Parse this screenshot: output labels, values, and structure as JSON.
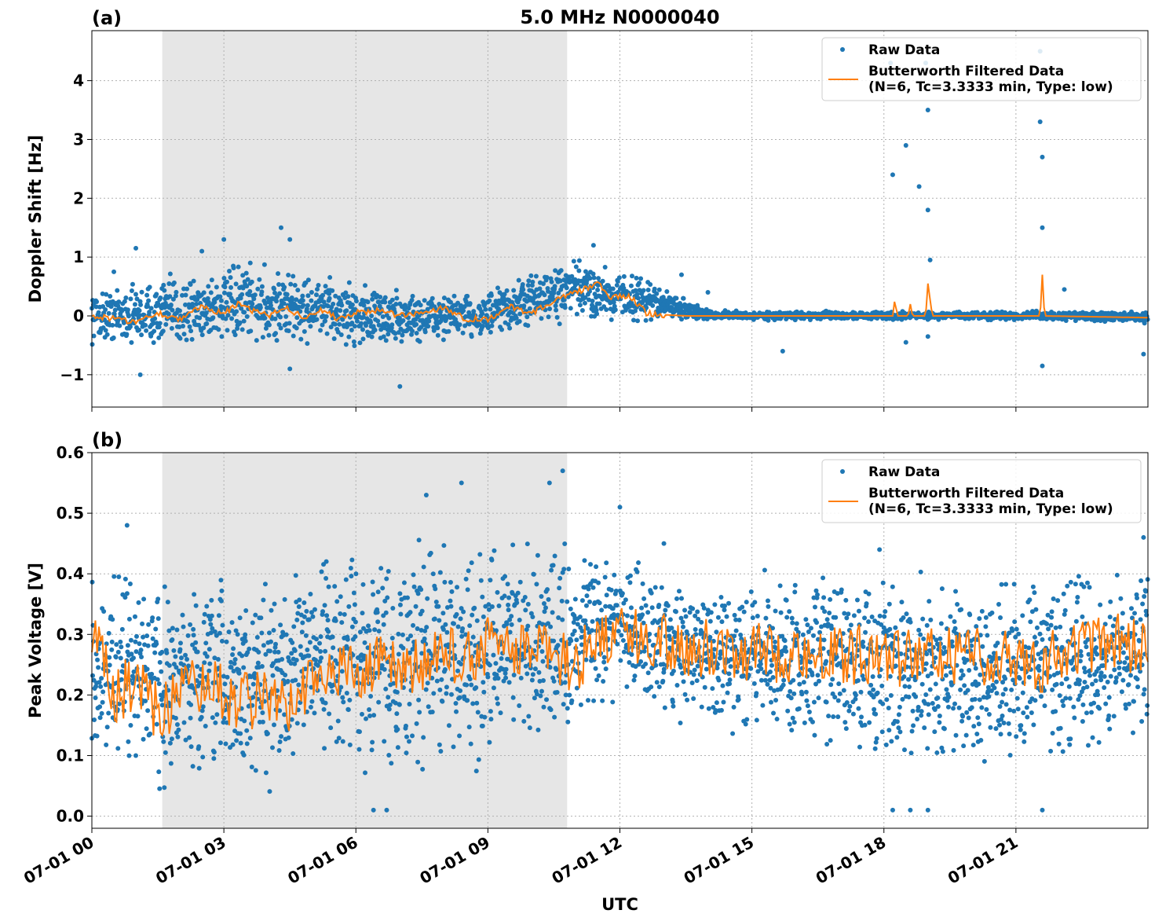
{
  "title": "5.0 MHz N0000040",
  "xlabel": "UTC",
  "colors": {
    "raw": "#1f77b4",
    "filtered": "#ff7f0e",
    "shade": "#e6e6e6"
  },
  "legend": {
    "raw_label": "Raw Data",
    "filtered_line1": "Butterworth Filtered Data",
    "filtered_line2": "(N=6, Tc=3.3333 min, Type: low)"
  },
  "chart_data": [
    {
      "panel": "(a)",
      "type": "scatter",
      "title": "5.0 MHz N0000040",
      "xlabel": "",
      "ylabel": "Doppler Shift [Hz]",
      "x_unit": "hours UTC (07-01)",
      "xlim": [
        0,
        24
      ],
      "ylim": [
        -1.55,
        4.85
      ],
      "yticks": [
        -1,
        0,
        1,
        2,
        3,
        4
      ],
      "ytick_labels": [
        "−1",
        "0",
        "1",
        "2",
        "3",
        "4"
      ],
      "xticks": [
        0,
        3,
        6,
        9,
        12,
        15,
        18,
        21
      ],
      "shaded_region": [
        1.6,
        10.8
      ],
      "grid": true,
      "legend_position": "top-right",
      "series": [
        {
          "name": "Raw Data",
          "style": "points",
          "envelope": [
            [
              0,
              -0.45,
              0.45
            ],
            [
              1,
              -0.55,
              0.6
            ],
            [
              2,
              -0.6,
              0.75
            ],
            [
              3,
              -0.5,
              0.85
            ],
            [
              4,
              -0.55,
              0.9
            ],
            [
              5,
              -0.5,
              0.75
            ],
            [
              6,
              -0.55,
              0.6
            ],
            [
              7,
              -0.6,
              0.5
            ],
            [
              8,
              -0.45,
              0.45
            ],
            [
              9,
              -0.45,
              0.45
            ],
            [
              10,
              -0.2,
              0.75
            ],
            [
              11,
              -0.1,
              1.0
            ],
            [
              12,
              -0.15,
              0.85
            ],
            [
              13,
              -0.1,
              0.5
            ],
            [
              14,
              -0.07,
              0.1
            ],
            [
              15,
              -0.07,
              0.08
            ],
            [
              18,
              -0.07,
              0.08
            ],
            [
              21,
              -0.07,
              0.08
            ],
            [
              24,
              -0.12,
              0.08
            ]
          ],
          "outliers": [
            [
              0.5,
              0.75
            ],
            [
              1.0,
              1.15
            ],
            [
              1.1,
              -1.0
            ],
            [
              2.5,
              1.1
            ],
            [
              3.0,
              1.3
            ],
            [
              3.6,
              0.9
            ],
            [
              4.3,
              1.5
            ],
            [
              4.5,
              1.3
            ],
            [
              4.5,
              -0.9
            ],
            [
              7.0,
              -1.2
            ],
            [
              11.4,
              1.2
            ],
            [
              13.4,
              0.7
            ],
            [
              14.0,
              0.4
            ],
            [
              15.7,
              -0.6
            ],
            [
              18.15,
              4.3
            ],
            [
              18.2,
              2.4
            ],
            [
              18.5,
              2.9
            ],
            [
              18.5,
              -0.45
            ],
            [
              18.8,
              2.2
            ],
            [
              18.95,
              4.3
            ],
            [
              19.0,
              3.5
            ],
            [
              19.0,
              1.8
            ],
            [
              19.05,
              0.95
            ],
            [
              19.0,
              -0.35
            ],
            [
              21.55,
              4.5
            ],
            [
              21.55,
              3.3
            ],
            [
              21.6,
              2.7
            ],
            [
              21.6,
              1.5
            ],
            [
              21.6,
              -0.85
            ],
            [
              22.1,
              0.45
            ],
            [
              23.9,
              -0.65
            ]
          ]
        },
        {
          "name": "Butterworth Filtered Data\n(N=6, Tc=3.3333 min, Type: low)",
          "style": "line",
          "points": [
            [
              0,
              0.0
            ],
            [
              0.5,
              -0.05
            ],
            [
              1.0,
              -0.1
            ],
            [
              1.5,
              0.05
            ],
            [
              2.0,
              -0.05
            ],
            [
              2.5,
              0.15
            ],
            [
              3.0,
              0.05
            ],
            [
              3.3,
              0.2
            ],
            [
              3.6,
              0.1
            ],
            [
              4.0,
              0.0
            ],
            [
              4.4,
              0.15
            ],
            [
              4.8,
              -0.02
            ],
            [
              5.2,
              0.1
            ],
            [
              5.6,
              -0.05
            ],
            [
              6.0,
              0.05
            ],
            [
              6.5,
              0.1
            ],
            [
              7.0,
              0.0
            ],
            [
              7.5,
              0.05
            ],
            [
              8.0,
              0.15
            ],
            [
              8.5,
              -0.05
            ],
            [
              9.0,
              -0.05
            ],
            [
              9.5,
              0.15
            ],
            [
              10.0,
              0.05
            ],
            [
              10.5,
              0.25
            ],
            [
              11.0,
              0.4
            ],
            [
              11.5,
              0.55
            ],
            [
              11.8,
              0.3
            ],
            [
              12.2,
              0.35
            ],
            [
              12.6,
              0.05
            ],
            [
              13.0,
              0.02
            ],
            [
              13.5,
              0.0
            ],
            [
              18.2,
              0.0
            ],
            [
              18.25,
              0.3
            ],
            [
              18.3,
              0.0
            ],
            [
              18.55,
              0.0
            ],
            [
              18.6,
              0.2
            ],
            [
              18.65,
              0.0
            ],
            [
              18.95,
              0.0
            ],
            [
              19.0,
              0.55
            ],
            [
              19.1,
              0.0
            ],
            [
              21.55,
              0.0
            ],
            [
              21.6,
              0.7
            ],
            [
              21.65,
              0.0
            ],
            [
              24,
              -0.03
            ]
          ]
        }
      ]
    },
    {
      "panel": "(b)",
      "type": "scatter",
      "title": "",
      "xlabel": "UTC",
      "ylabel": "Peak Voltage [V]",
      "x_unit": "hours UTC (07-01)",
      "xlim": [
        0,
        24
      ],
      "ylim": [
        -0.02,
        0.6
      ],
      "yticks": [
        0.0,
        0.1,
        0.2,
        0.3,
        0.4,
        0.5,
        0.6
      ],
      "ytick_labels": [
        "0.0",
        "0.1",
        "0.2",
        "0.3",
        "0.4",
        "0.5",
        "0.6"
      ],
      "xticks": [
        0,
        3,
        6,
        9,
        12,
        15,
        18,
        21
      ],
      "xtick_labels": [
        "07-01 00",
        "07-01 03",
        "07-01 06",
        "07-01 09",
        "07-01 12",
        "07-01 15",
        "07-01 18",
        "07-01 21"
      ],
      "shaded_region": [
        1.6,
        10.8
      ],
      "grid": true,
      "legend_position": "top-right",
      "series": [
        {
          "name": "Raw Data",
          "style": "points",
          "envelope": [
            [
              0,
              0.1,
              0.4
            ],
            [
              1,
              0.05,
              0.42
            ],
            [
              2,
              0.04,
              0.4
            ],
            [
              3,
              0.04,
              0.4
            ],
            [
              4,
              0.04,
              0.4
            ],
            [
              5,
              0.1,
              0.44
            ],
            [
              6,
              0.08,
              0.46
            ],
            [
              7,
              0.06,
              0.46
            ],
            [
              8,
              0.08,
              0.48
            ],
            [
              9,
              0.08,
              0.47
            ],
            [
              10,
              0.08,
              0.47
            ],
            [
              11,
              0.15,
              0.44
            ],
            [
              12,
              0.2,
              0.44
            ],
            [
              13,
              0.15,
              0.42
            ],
            [
              14,
              0.15,
              0.4
            ],
            [
              15,
              0.12,
              0.4
            ],
            [
              16,
              0.12,
              0.4
            ],
            [
              17,
              0.1,
              0.4
            ],
            [
              18,
              0.08,
              0.4
            ],
            [
              19,
              0.08,
              0.4
            ],
            [
              20,
              0.08,
              0.4
            ],
            [
              21,
              0.08,
              0.4
            ],
            [
              22,
              0.1,
              0.4
            ],
            [
              23,
              0.1,
              0.42
            ],
            [
              24,
              0.12,
              0.44
            ]
          ],
          "outliers": [
            [
              0.8,
              0.48
            ],
            [
              6.4,
              0.01
            ],
            [
              6.7,
              0.01
            ],
            [
              7.6,
              0.53
            ],
            [
              8.4,
              0.55
            ],
            [
              10.4,
              0.55
            ],
            [
              10.7,
              0.57
            ],
            [
              12.0,
              0.51
            ],
            [
              13.0,
              0.45
            ],
            [
              17.9,
              0.44
            ],
            [
              18.2,
              0.01
            ],
            [
              18.6,
              0.01
            ],
            [
              19.0,
              0.01
            ],
            [
              21.6,
              0.01
            ],
            [
              23.9,
              0.46
            ]
          ]
        },
        {
          "name": "Butterworth Filtered Data\n(N=6, Tc=3.3333 min, Type: low)",
          "style": "line",
          "points": [
            [
              0,
              0.3
            ],
            [
              0.5,
              0.2
            ],
            [
              1,
              0.22
            ],
            [
              1.5,
              0.17
            ],
            [
              2,
              0.2
            ],
            [
              2.5,
              0.22
            ],
            [
              3,
              0.2
            ],
            [
              3.5,
              0.19
            ],
            [
              4,
              0.2
            ],
            [
              4.5,
              0.18
            ],
            [
              5,
              0.22
            ],
            [
              5.5,
              0.25
            ],
            [
              6,
              0.23
            ],
            [
              6.5,
              0.25
            ],
            [
              7,
              0.24
            ],
            [
              7.5,
              0.25
            ],
            [
              8,
              0.26
            ],
            [
              8.5,
              0.27
            ],
            [
              9,
              0.28
            ],
            [
              9.5,
              0.27
            ],
            [
              10,
              0.28
            ],
            [
              10.5,
              0.26
            ],
            [
              11,
              0.25
            ],
            [
              11.5,
              0.3
            ],
            [
              12,
              0.3
            ],
            [
              12.5,
              0.29
            ],
            [
              13,
              0.29
            ],
            [
              13.5,
              0.28
            ],
            [
              14,
              0.28
            ],
            [
              14.5,
              0.28
            ],
            [
              15,
              0.27
            ],
            [
              15.5,
              0.27
            ],
            [
              16,
              0.27
            ],
            [
              16.5,
              0.27
            ],
            [
              17,
              0.26
            ],
            [
              17.5,
              0.27
            ],
            [
              18,
              0.26
            ],
            [
              18.5,
              0.26
            ],
            [
              19,
              0.26
            ],
            [
              19.5,
              0.27
            ],
            [
              20,
              0.26
            ],
            [
              20.5,
              0.27
            ],
            [
              21,
              0.26
            ],
            [
              21.5,
              0.25
            ],
            [
              22,
              0.27
            ],
            [
              22.5,
              0.28
            ],
            [
              23,
              0.28
            ],
            [
              23.5,
              0.29
            ],
            [
              24,
              0.27
            ]
          ]
        }
      ]
    }
  ]
}
